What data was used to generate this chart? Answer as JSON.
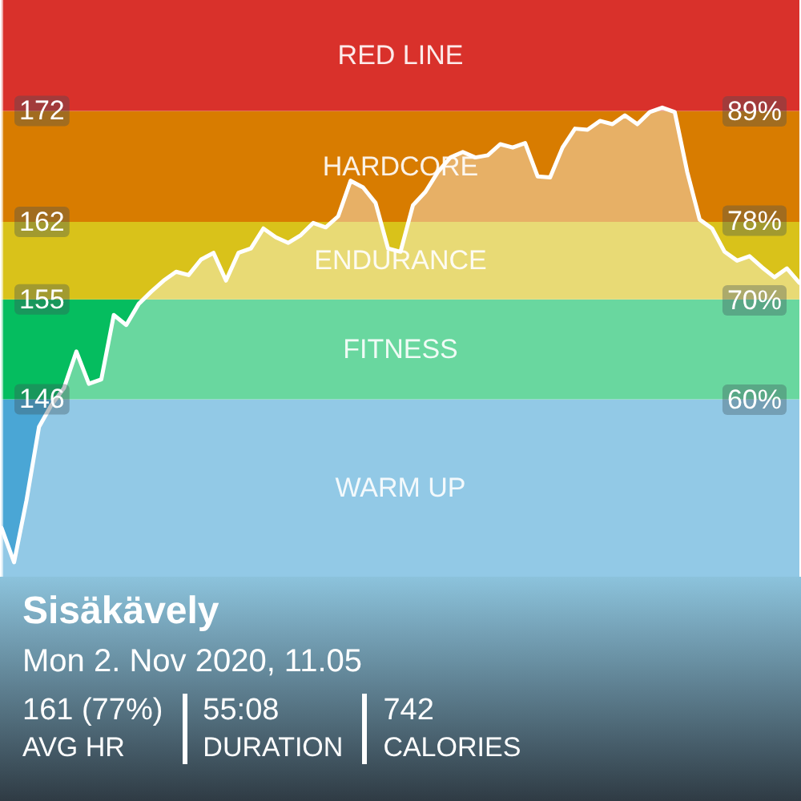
{
  "chart_data": {
    "type": "area",
    "title": "Sisäkävely",
    "subtitle": "Mon 2. Nov 2020, 11.05",
    "annotations": [
      "161 (77%)",
      "AVG HR",
      "55:08",
      "DURATION",
      "742",
      "CALORIES"
    ],
    "categories": [
      null,
      null,
      null,
      null,
      null,
      null,
      null,
      null,
      null,
      null,
      null,
      null,
      null,
      null,
      null,
      null,
      null,
      null,
      null,
      null,
      null,
      null,
      null,
      null,
      null,
      null,
      null,
      null,
      null,
      null,
      null,
      null,
      null,
      null,
      null,
      null,
      null,
      null,
      null,
      null,
      null,
      null,
      null,
      null,
      null,
      null,
      null,
      null,
      null,
      null,
      null,
      null,
      null,
      null,
      null,
      null,
      null,
      null,
      null,
      null,
      null,
      null,
      null,
      null,
      null
    ],
    "series": [
      {
        "color": "#ffffff",
        "values": [
          134.4,
          131.3,
          136.9,
          143.5,
          145.5,
          147,
          150.3,
          147.4,
          147.8,
          153.6,
          152.7,
          154.6,
          155.7,
          156.7,
          157.5,
          157.2,
          158.6,
          159.2,
          156.7,
          159.2,
          159.6,
          161.4,
          160.6,
          160.1,
          160.8,
          161.9,
          161.5,
          162.5,
          165.7,
          165.1,
          163.7,
          159.6,
          159.3,
          163.5,
          164.7,
          166.5,
          167.8,
          168.3,
          167.8,
          168,
          169,
          168.7,
          169.1,
          166.1,
          166,
          168.7,
          170.4,
          170.3,
          171.1,
          170.8,
          171.6,
          170.8,
          171.9,
          172.3,
          171.9,
          166.5,
          162.2,
          161.4,
          159.3,
          158.5,
          158.9,
          157.9,
          157,
          157.8,
          156.5
        ]
      }
    ],
    "ylim": [
      130,
      182
    ],
    "yticks": [
      146,
      155,
      162,
      172
    ],
    "y2lim": [
      42.2,
      100.2
    ],
    "y2ticks": [
      {
        "value": 60,
        "label": "60%"
      },
      {
        "value": 70,
        "label": "70%"
      },
      {
        "value": 78,
        "label": "78%"
      },
      {
        "value": 89,
        "label": "89%"
      }
    ],
    "bands": [
      {
        "axis": "y",
        "from": 130,
        "to": 146,
        "label": "WARM UP",
        "color": "#4aa6d5"
      },
      {
        "axis": "y",
        "from": 146,
        "to": 155,
        "label": "FITNESS",
        "color": "#05bd5f"
      },
      {
        "axis": "y",
        "from": 155,
        "to": 162,
        "label": "ENDURANCE",
        "color": "#d9c21a"
      },
      {
        "axis": "y",
        "from": 162,
        "to": 172,
        "label": "HARDCORE",
        "color": "#d87c00"
      },
      {
        "axis": "y",
        "from": 172,
        "to": 182,
        "label": "RED LINE",
        "color": "#d9312b"
      }
    ],
    "grid": false
  }
}
